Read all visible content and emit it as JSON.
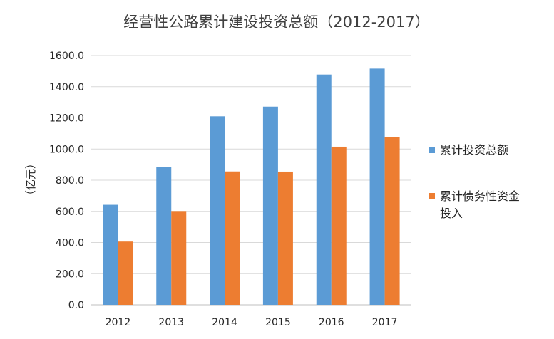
{
  "chart_data": {
    "type": "bar",
    "title": "经营性公路累计建设投资总额（2012-2017）",
    "ylabel": "（亿元）",
    "xlabel": "",
    "categories": [
      "2012",
      "2013",
      "2014",
      "2015",
      "2016",
      "2017"
    ],
    "ylim": [
      0,
      1600
    ],
    "yticks": [
      "0.0",
      "200.0",
      "400.0",
      "600.0",
      "800.0",
      "1000.0",
      "1200.0",
      "1400.0",
      "1600.0"
    ],
    "grid": true,
    "legend_position": "right",
    "series": [
      {
        "name": "累计投资总额",
        "color": "#5b9bd5",
        "values": [
          642,
          885,
          1210,
          1272,
          1478,
          1516
        ]
      },
      {
        "name": "累计债务性资金投入",
        "legend_lines": [
          "累计债务性资金",
          "投入"
        ],
        "color": "#ed7d31",
        "values": [
          406,
          602,
          856,
          855,
          1015,
          1077
        ]
      }
    ]
  }
}
